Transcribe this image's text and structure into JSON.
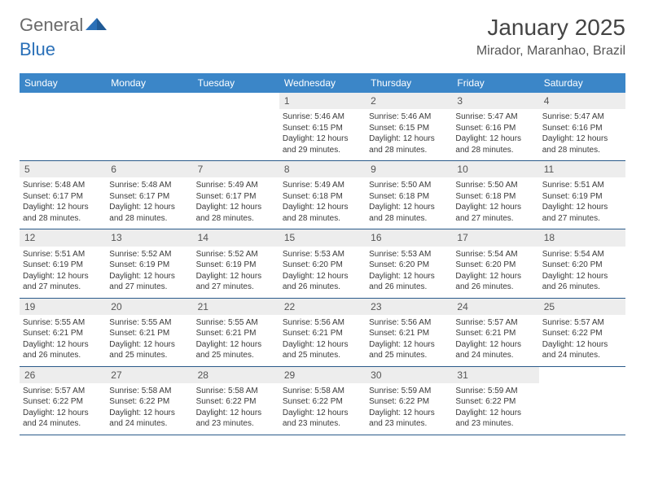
{
  "logo": {
    "general": "General",
    "blue": "Blue"
  },
  "title": "January 2025",
  "location": "Mirador, Maranhao, Brazil",
  "colors": {
    "header_bg": "#3b86c8",
    "header_text": "#ffffff",
    "daynum_bg": "#ededed",
    "rule": "#2a5a8a",
    "logo_general": "#6a6a6a",
    "logo_blue": "#2a70b8"
  },
  "weekdays": [
    "Sunday",
    "Monday",
    "Tuesday",
    "Wednesday",
    "Thursday",
    "Friday",
    "Saturday"
  ],
  "weeks": [
    [
      {
        "n": "",
        "sunrise": "",
        "sunset": "",
        "daylight": ""
      },
      {
        "n": "",
        "sunrise": "",
        "sunset": "",
        "daylight": ""
      },
      {
        "n": "",
        "sunrise": "",
        "sunset": "",
        "daylight": ""
      },
      {
        "n": "1",
        "sunrise": "Sunrise: 5:46 AM",
        "sunset": "Sunset: 6:15 PM",
        "daylight": "Daylight: 12 hours and 29 minutes."
      },
      {
        "n": "2",
        "sunrise": "Sunrise: 5:46 AM",
        "sunset": "Sunset: 6:15 PM",
        "daylight": "Daylight: 12 hours and 28 minutes."
      },
      {
        "n": "3",
        "sunrise": "Sunrise: 5:47 AM",
        "sunset": "Sunset: 6:16 PM",
        "daylight": "Daylight: 12 hours and 28 minutes."
      },
      {
        "n": "4",
        "sunrise": "Sunrise: 5:47 AM",
        "sunset": "Sunset: 6:16 PM",
        "daylight": "Daylight: 12 hours and 28 minutes."
      }
    ],
    [
      {
        "n": "5",
        "sunrise": "Sunrise: 5:48 AM",
        "sunset": "Sunset: 6:17 PM",
        "daylight": "Daylight: 12 hours and 28 minutes."
      },
      {
        "n": "6",
        "sunrise": "Sunrise: 5:48 AM",
        "sunset": "Sunset: 6:17 PM",
        "daylight": "Daylight: 12 hours and 28 minutes."
      },
      {
        "n": "7",
        "sunrise": "Sunrise: 5:49 AM",
        "sunset": "Sunset: 6:17 PM",
        "daylight": "Daylight: 12 hours and 28 minutes."
      },
      {
        "n": "8",
        "sunrise": "Sunrise: 5:49 AM",
        "sunset": "Sunset: 6:18 PM",
        "daylight": "Daylight: 12 hours and 28 minutes."
      },
      {
        "n": "9",
        "sunrise": "Sunrise: 5:50 AM",
        "sunset": "Sunset: 6:18 PM",
        "daylight": "Daylight: 12 hours and 28 minutes."
      },
      {
        "n": "10",
        "sunrise": "Sunrise: 5:50 AM",
        "sunset": "Sunset: 6:18 PM",
        "daylight": "Daylight: 12 hours and 27 minutes."
      },
      {
        "n": "11",
        "sunrise": "Sunrise: 5:51 AM",
        "sunset": "Sunset: 6:19 PM",
        "daylight": "Daylight: 12 hours and 27 minutes."
      }
    ],
    [
      {
        "n": "12",
        "sunrise": "Sunrise: 5:51 AM",
        "sunset": "Sunset: 6:19 PM",
        "daylight": "Daylight: 12 hours and 27 minutes."
      },
      {
        "n": "13",
        "sunrise": "Sunrise: 5:52 AM",
        "sunset": "Sunset: 6:19 PM",
        "daylight": "Daylight: 12 hours and 27 minutes."
      },
      {
        "n": "14",
        "sunrise": "Sunrise: 5:52 AM",
        "sunset": "Sunset: 6:19 PM",
        "daylight": "Daylight: 12 hours and 27 minutes."
      },
      {
        "n": "15",
        "sunrise": "Sunrise: 5:53 AM",
        "sunset": "Sunset: 6:20 PM",
        "daylight": "Daylight: 12 hours and 26 minutes."
      },
      {
        "n": "16",
        "sunrise": "Sunrise: 5:53 AM",
        "sunset": "Sunset: 6:20 PM",
        "daylight": "Daylight: 12 hours and 26 minutes."
      },
      {
        "n": "17",
        "sunrise": "Sunrise: 5:54 AM",
        "sunset": "Sunset: 6:20 PM",
        "daylight": "Daylight: 12 hours and 26 minutes."
      },
      {
        "n": "18",
        "sunrise": "Sunrise: 5:54 AM",
        "sunset": "Sunset: 6:20 PM",
        "daylight": "Daylight: 12 hours and 26 minutes."
      }
    ],
    [
      {
        "n": "19",
        "sunrise": "Sunrise: 5:55 AM",
        "sunset": "Sunset: 6:21 PM",
        "daylight": "Daylight: 12 hours and 26 minutes."
      },
      {
        "n": "20",
        "sunrise": "Sunrise: 5:55 AM",
        "sunset": "Sunset: 6:21 PM",
        "daylight": "Daylight: 12 hours and 25 minutes."
      },
      {
        "n": "21",
        "sunrise": "Sunrise: 5:55 AM",
        "sunset": "Sunset: 6:21 PM",
        "daylight": "Daylight: 12 hours and 25 minutes."
      },
      {
        "n": "22",
        "sunrise": "Sunrise: 5:56 AM",
        "sunset": "Sunset: 6:21 PM",
        "daylight": "Daylight: 12 hours and 25 minutes."
      },
      {
        "n": "23",
        "sunrise": "Sunrise: 5:56 AM",
        "sunset": "Sunset: 6:21 PM",
        "daylight": "Daylight: 12 hours and 25 minutes."
      },
      {
        "n": "24",
        "sunrise": "Sunrise: 5:57 AM",
        "sunset": "Sunset: 6:21 PM",
        "daylight": "Daylight: 12 hours and 24 minutes."
      },
      {
        "n": "25",
        "sunrise": "Sunrise: 5:57 AM",
        "sunset": "Sunset: 6:22 PM",
        "daylight": "Daylight: 12 hours and 24 minutes."
      }
    ],
    [
      {
        "n": "26",
        "sunrise": "Sunrise: 5:57 AM",
        "sunset": "Sunset: 6:22 PM",
        "daylight": "Daylight: 12 hours and 24 minutes."
      },
      {
        "n": "27",
        "sunrise": "Sunrise: 5:58 AM",
        "sunset": "Sunset: 6:22 PM",
        "daylight": "Daylight: 12 hours and 24 minutes."
      },
      {
        "n": "28",
        "sunrise": "Sunrise: 5:58 AM",
        "sunset": "Sunset: 6:22 PM",
        "daylight": "Daylight: 12 hours and 23 minutes."
      },
      {
        "n": "29",
        "sunrise": "Sunrise: 5:58 AM",
        "sunset": "Sunset: 6:22 PM",
        "daylight": "Daylight: 12 hours and 23 minutes."
      },
      {
        "n": "30",
        "sunrise": "Sunrise: 5:59 AM",
        "sunset": "Sunset: 6:22 PM",
        "daylight": "Daylight: 12 hours and 23 minutes."
      },
      {
        "n": "31",
        "sunrise": "Sunrise: 5:59 AM",
        "sunset": "Sunset: 6:22 PM",
        "daylight": "Daylight: 12 hours and 23 minutes."
      },
      {
        "n": "",
        "sunrise": "",
        "sunset": "",
        "daylight": ""
      }
    ]
  ]
}
